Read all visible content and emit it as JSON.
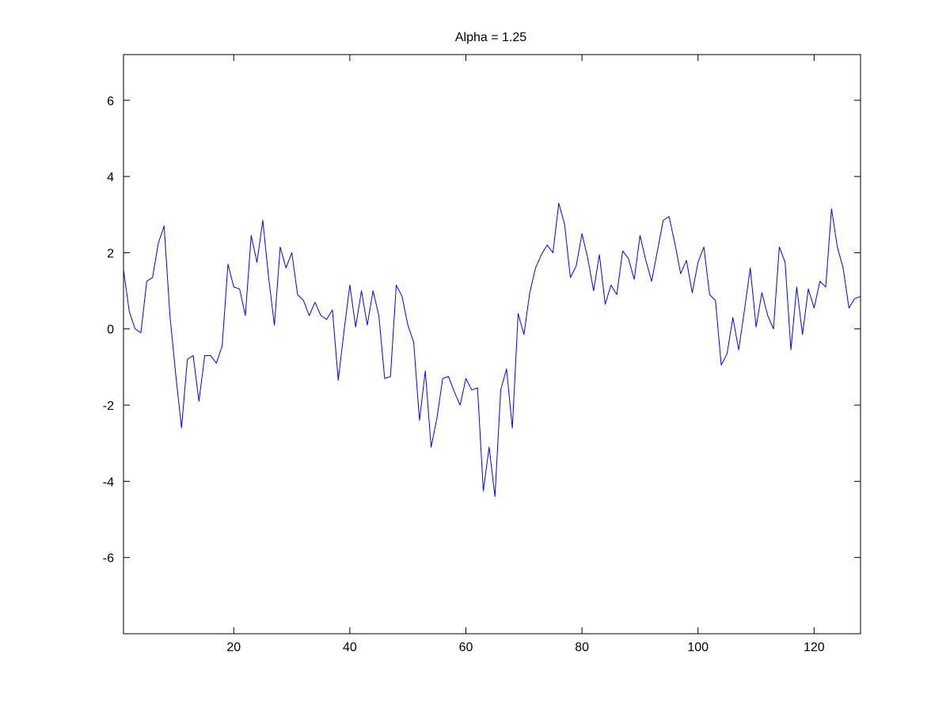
{
  "chart_data": {
    "type": "line",
    "title": "Alpha = 1.25",
    "xlabel": "",
    "ylabel": "",
    "xlim": [
      1,
      128
    ],
    "ylim": [
      -8,
      7.2
    ],
    "x_ticks": [
      20,
      40,
      60,
      80,
      100,
      120
    ],
    "x_tick_labels": [
      "20",
      "40",
      "60",
      "80",
      "100",
      "120"
    ],
    "y_ticks": [
      -6,
      -4,
      -2,
      0,
      2,
      4,
      6
    ],
    "y_tick_labels": [
      "-6",
      "-4",
      "-2",
      "0",
      "2",
      "4",
      "6"
    ],
    "grid": false,
    "series": [
      {
        "color": "#0000ff",
        "x": [
          1,
          2,
          3,
          4,
          5,
          6,
          7,
          8,
          9,
          10,
          11,
          12,
          13,
          14,
          15,
          16,
          17,
          18,
          19,
          20,
          21,
          22,
          23,
          24,
          25,
          26,
          27,
          28,
          29,
          30,
          31,
          32,
          33,
          34,
          35,
          36,
          37,
          38,
          39,
          40,
          41,
          42,
          43,
          44,
          45,
          46,
          47,
          48,
          49,
          50,
          51,
          52,
          53,
          54,
          55,
          56,
          57,
          58,
          59,
          60,
          61,
          62,
          63,
          64,
          65,
          66,
          67,
          68,
          69,
          70,
          71,
          72,
          73,
          74,
          75,
          76,
          77,
          78,
          79,
          80,
          81,
          82,
          83,
          84,
          85,
          86,
          87,
          88,
          89,
          90,
          91,
          92,
          93,
          94,
          95,
          96,
          97,
          98,
          99,
          100,
          101,
          102,
          103,
          104,
          105,
          106,
          107,
          108,
          109,
          110,
          111,
          112,
          113,
          114,
          115,
          116,
          117,
          118,
          119,
          120,
          121,
          122,
          123,
          124,
          125,
          126,
          127,
          128
        ],
        "values": [
          1.55,
          0.45,
          0.0,
          -0.1,
          1.25,
          1.35,
          2.25,
          2.7,
          0.35,
          -1.2,
          -2.6,
          -0.8,
          -0.7,
          -1.9,
          -0.7,
          -0.7,
          -0.9,
          -0.45,
          1.7,
          1.1,
          1.05,
          0.35,
          2.45,
          1.75,
          2.85,
          1.35,
          0.1,
          2.15,
          1.6,
          2.0,
          0.9,
          0.75,
          0.35,
          0.7,
          0.35,
          0.25,
          0.5,
          -1.35,
          -0.05,
          1.15,
          0.05,
          1.0,
          0.1,
          1.0,
          0.35,
          -1.3,
          -1.25,
          1.15,
          0.85,
          0.1,
          -0.35,
          -2.4,
          -1.1,
          -3.1,
          -2.35,
          -1.3,
          -1.25,
          -1.65,
          -2.0,
          -1.3,
          -1.6,
          -1.55,
          -4.25,
          -3.1,
          -4.4,
          -1.6,
          -1.05,
          -2.6,
          0.4,
          -0.15,
          0.95,
          1.6,
          1.95,
          2.2,
          2.0,
          3.3,
          2.75,
          1.35,
          1.65,
          2.5,
          1.85,
          1.0,
          1.95,
          0.65,
          1.15,
          0.9,
          2.05,
          1.85,
          1.3,
          2.45,
          1.8,
          1.25,
          2.05,
          2.85,
          2.95,
          2.25,
          1.45,
          1.8,
          0.95,
          1.75,
          2.15,
          0.9,
          0.75,
          -0.95,
          -0.65,
          0.3,
          -0.55,
          0.5,
          1.6,
          0.05,
          0.95,
          0.35,
          0.0,
          2.15,
          1.75,
          -0.55,
          1.1,
          -0.15,
          1.05,
          0.55,
          1.25,
          1.1,
          3.15,
          2.15,
          1.6,
          0.55,
          0.8,
          0.85
        ]
      }
    ]
  }
}
